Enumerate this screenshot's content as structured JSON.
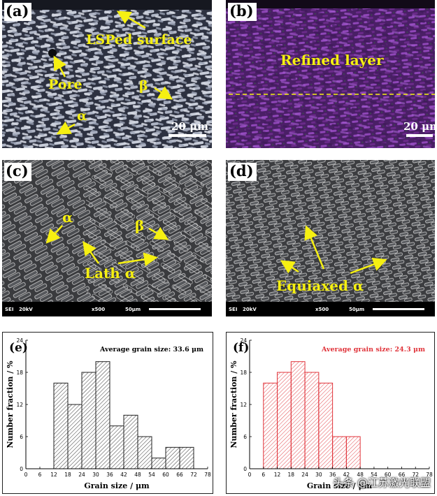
{
  "panels": {
    "a": {
      "tag": "(a)",
      "labels": {
        "surface": "LSPed surface",
        "pore": "Pore",
        "beta": "β",
        "alpha": "α"
      },
      "scale": "20 μm"
    },
    "b": {
      "tag": "(b)",
      "labels": {
        "refined": "Refined layer"
      },
      "scale": "20 μm"
    },
    "c": {
      "tag": "(c)",
      "labels": {
        "alpha": "α",
        "beta": "β",
        "lath": "Lath α"
      },
      "sem": {
        "mode": "SEI",
        "kv": "20kV",
        "mag": "x500",
        "scale": "50μm"
      }
    },
    "d": {
      "tag": "(d)",
      "labels": {
        "equiaxed": "Equiaxed α"
      },
      "sem": {
        "mode": "SEI",
        "kv": "20kV",
        "mag": "x500",
        "scale": "50μm"
      }
    }
  },
  "colors": {
    "annotation_yellow": "#f6f012",
    "panel_b_purple": "#6a2a8a",
    "hist_e_stroke": "#222222",
    "hist_f_stroke": "#e0333a",
    "avg_f_text": "#e0333a"
  },
  "chart_data": [
    {
      "type": "bar",
      "panel": "(e)",
      "annotation": "Average grain size: 33.6 μm",
      "xlabel": "Grain size / μm",
      "ylabel": "Number fraction / %",
      "xlim": [
        0,
        78
      ],
      "ylim": [
        0,
        24
      ],
      "xticks": [
        0,
        6,
        12,
        18,
        24,
        30,
        36,
        42,
        48,
        54,
        60,
        66,
        72,
        78
      ],
      "yticks": [
        0,
        6,
        12,
        18,
        24
      ],
      "bin_width": 6,
      "bin_starts": [
        12,
        18,
        24,
        30,
        36,
        42,
        48,
        54,
        60,
        66
      ],
      "values": [
        16,
        12,
        18,
        20,
        8,
        10,
        6,
        2,
        4,
        4
      ],
      "bar_style": "hatched",
      "bar_color": "#222222"
    },
    {
      "type": "bar",
      "panel": "(f)",
      "annotation": "Average grain size: 24.3 μm",
      "xlabel": "Grain size / μm",
      "ylabel": "Number fraction / %",
      "xlim": [
        0,
        78
      ],
      "ylim": [
        0,
        24
      ],
      "xticks": [
        0,
        6,
        12,
        18,
        24,
        30,
        36,
        42,
        48,
        54,
        60,
        66,
        72,
        78
      ],
      "yticks": [
        0,
        6,
        12,
        18,
        24
      ],
      "bin_width": 6,
      "bin_starts": [
        6,
        12,
        18,
        24,
        30,
        36,
        42
      ],
      "values": [
        16,
        18,
        20,
        18,
        16,
        6,
        6
      ],
      "bar_style": "hatched",
      "bar_color": "#e0333a"
    }
  ],
  "watermark": "头条 @江苏激光联盟"
}
